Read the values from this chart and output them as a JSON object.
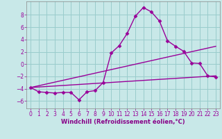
{
  "xlabel": "Windchill (Refroidissement éolien,°C)",
  "background_color": "#c8e8e8",
  "plot_bg_color": "#c8e8e8",
  "line_color": "#990099",
  "grid_color": "#99cccc",
  "spine_color": "#888888",
  "x_ticks": [
    0,
    1,
    2,
    3,
    4,
    5,
    6,
    7,
    8,
    9,
    10,
    11,
    12,
    13,
    14,
    15,
    16,
    17,
    18,
    19,
    20,
    21,
    22,
    23
  ],
  "y_ticks": [
    -6,
    -4,
    -2,
    0,
    2,
    4,
    6,
    8
  ],
  "ylim": [
    -7.2,
    10.2
  ],
  "xlim": [
    -0.5,
    23.5
  ],
  "series1_x": [
    0,
    1,
    2,
    3,
    4,
    5,
    6,
    7,
    8,
    9,
    10,
    11,
    12,
    13,
    14,
    15,
    16,
    17,
    18,
    19,
    20,
    21,
    22,
    23
  ],
  "series1_y": [
    -3.8,
    -4.5,
    -4.6,
    -4.7,
    -4.6,
    -4.6,
    -5.8,
    -4.5,
    -4.3,
    -3.0,
    1.8,
    3.0,
    5.0,
    7.8,
    9.2,
    8.5,
    7.0,
    3.8,
    2.9,
    2.1,
    0.2,
    0.1,
    -1.9,
    -2.1
  ],
  "series2_x": [
    0,
    23
  ],
  "series2_y": [
    -3.8,
    -1.9
  ],
  "series3_x": [
    0,
    23
  ],
  "series3_y": [
    -3.8,
    2.9
  ],
  "marker": "D",
  "markersize": 2.5,
  "linewidth": 1.0,
  "xlabel_fontsize": 6,
  "tick_fontsize": 5.5,
  "xlabel_color": "#880088"
}
